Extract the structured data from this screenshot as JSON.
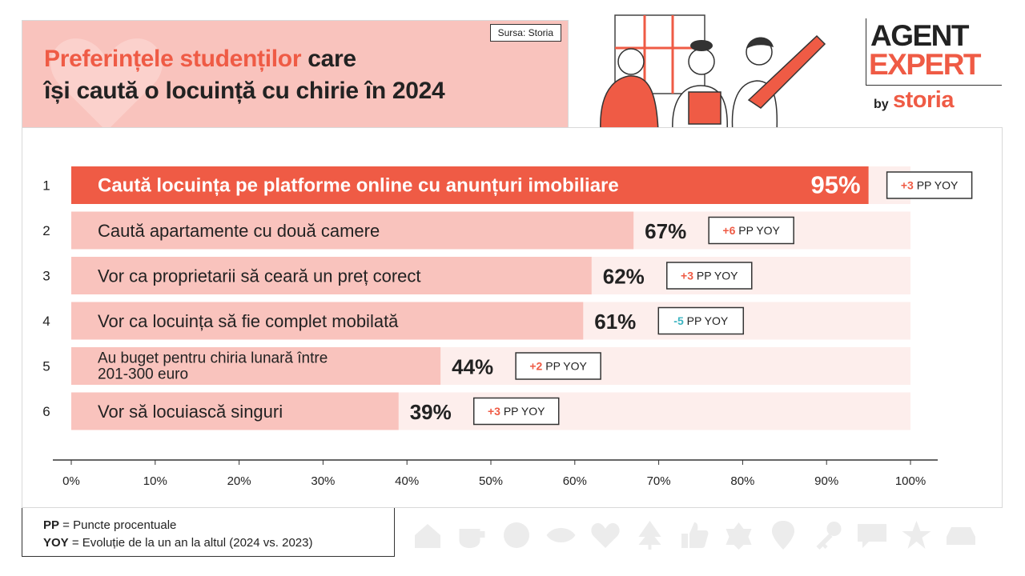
{
  "header": {
    "source": "Sursa: Storia",
    "title_highlight": "Preferințele studenților",
    "title_rest1": " care",
    "title_line2": "își caută o locuință cu chirie în 2024"
  },
  "logo": {
    "line1": "AGENT",
    "line2": "EXPERT",
    "by": "by",
    "brand": "storia"
  },
  "colors": {
    "accent": "#ef5b45",
    "bar": "#f9c3bd",
    "track": "#fdeeec",
    "negative": "#3bb4c1"
  },
  "chart_data": {
    "type": "bar",
    "orientation": "horizontal",
    "xlim": [
      0,
      100
    ],
    "xticks": [
      "0%",
      "10%",
      "20%",
      "30%",
      "40%",
      "50%",
      "60%",
      "70%",
      "80%",
      "90%",
      "100%"
    ],
    "rows": [
      {
        "rank": "1",
        "label": [
          "Caută locuința pe platforme online cu anunțuri imobiliare"
        ],
        "value": 95,
        "value_label": "95%",
        "change": "+3",
        "change_unit": "PP YOY",
        "highlight": true
      },
      {
        "rank": "2",
        "label": [
          "Caută apartamente cu două camere"
        ],
        "value": 67,
        "value_label": "67%",
        "change": "+6",
        "change_unit": "PP YOY",
        "highlight": false
      },
      {
        "rank": "3",
        "label": [
          "Vor ca proprietarii să ceară un preț corect"
        ],
        "value": 62,
        "value_label": "62%",
        "change": "+3",
        "change_unit": "PP YOY",
        "highlight": false
      },
      {
        "rank": "4",
        "label": [
          "Vor ca locuința să fie complet mobilată"
        ],
        "value": 61,
        "value_label": "61%",
        "change": "-5",
        "change_unit": "PP YOY",
        "highlight": false
      },
      {
        "rank": "5",
        "label": [
          "Au buget pentru chiria lunară între",
          "201-300 euro"
        ],
        "value": 44,
        "value_label": "44%",
        "change": "+2",
        "change_unit": "PP YOY",
        "highlight": false
      },
      {
        "rank": "6",
        "label": [
          "Vor să locuiască singuri"
        ],
        "value": 39,
        "value_label": "39%",
        "change": "+3",
        "change_unit": "PP YOY",
        "highlight": false
      }
    ]
  },
  "legend": {
    "pp_abbr": "PP",
    "pp_text": " = Puncte procentuale",
    "yoy_abbr": "YOY",
    "yoy_text": " = Evoluție de la un an la altul (2024 vs. 2023)"
  },
  "icons": [
    "house-icon",
    "cup-icon",
    "smiley-icon",
    "eye-icon",
    "heart-icon",
    "tree-icon",
    "thumbs-up-icon",
    "flower-icon",
    "location-pin-icon",
    "key-icon",
    "chat-icon",
    "star-icon",
    "car-icon"
  ]
}
